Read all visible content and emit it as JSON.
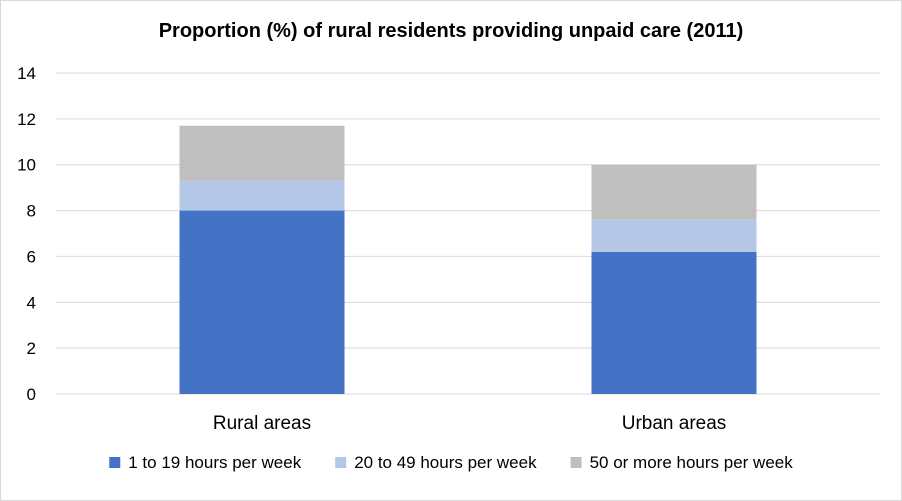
{
  "chart_data": {
    "type": "bar",
    "stacked": true,
    "title": "Proportion (%) of rural residents providing unpaid care (2011)",
    "categories": [
      "Rural areas",
      "Urban areas"
    ],
    "series": [
      {
        "name": "1 to 19 hours per week",
        "values": [
          8.0,
          6.2
        ],
        "color": "#4472c4"
      },
      {
        "name": "20 to 49 hours per week",
        "values": [
          1.3,
          1.4
        ],
        "color": "#b4c7e7"
      },
      {
        "name": "50 or more hours per week",
        "values": [
          2.4,
          2.4
        ],
        "color": "#bfbfbf"
      }
    ],
    "ylim": [
      0,
      14
    ],
    "yticks": [
      "0",
      "2",
      "4",
      "6",
      "8",
      "10",
      "12",
      "14"
    ],
    "grid": true,
    "legend_position": "bottom"
  }
}
